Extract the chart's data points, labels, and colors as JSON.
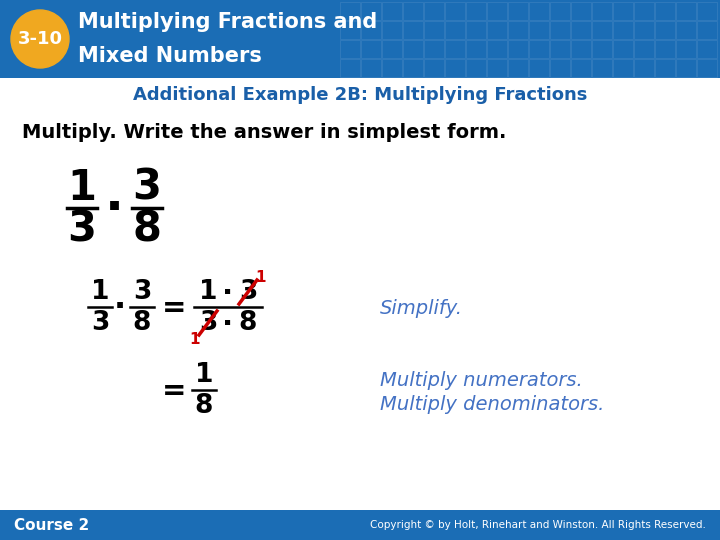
{
  "header_bg_color": "#1b6db5",
  "header_text_color": "#ffffff",
  "header_title_line1": "Multiplying Fractions and",
  "header_title_line2": "Mixed Numbers",
  "badge_bg": "#f0a820",
  "badge_text": "3-10",
  "subheader_text": "Additional Example 2B: Multiplying Fractions",
  "subheader_color": "#1a5fa8",
  "instruction_text": "Multiply. Write the answer in simplest form.",
  "instruction_color": "#000000",
  "body_bg": "#ffffff",
  "footer_bg": "#1b6db5",
  "footer_left": "Course 2",
  "footer_right": "Copyright © by Holt, Rinehart and Winston. All Rights Reserved.",
  "footer_text_color": "#ffffff",
  "blue_text_color": "#4472c4",
  "red_color": "#cc0000",
  "grid_color": "#5590c8"
}
